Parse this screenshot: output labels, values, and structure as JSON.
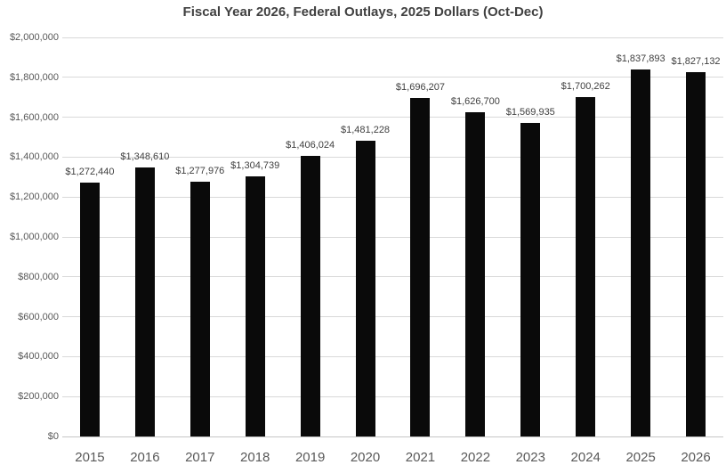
{
  "chart_data": {
    "type": "bar",
    "title": "Fiscal Year 2026, Federal Outlays, 2025 Dollars (Oct-Dec)",
    "categories": [
      "2015",
      "2016",
      "2017",
      "2018",
      "2019",
      "2020",
      "2021",
      "2022",
      "2023",
      "2024",
      "2025",
      "2026"
    ],
    "values": [
      1272440,
      1348610,
      1277976,
      1304739,
      1406024,
      1481228,
      1696207,
      1626700,
      1569935,
      1700262,
      1837893,
      1827132
    ],
    "bar_labels": [
      "$1,272,440",
      "$1,348,610",
      "$1,277,976",
      "$1,304,739",
      "$1,406,024",
      "$1,481,228",
      "$1,696,207",
      "$1,626,700",
      "$1,569,935",
      "$1,700,262",
      "$1,837,893",
      "$1,827,132"
    ],
    "y_tick_labels": [
      "$0",
      "$200,000",
      "$400,000",
      "$600,000",
      "$800,000",
      "$1,000,000",
      "$1,200,000",
      "$1,400,000",
      "$1,600,000",
      "$1,800,000",
      "$2,000,000"
    ],
    "ylim": [
      0,
      2000000
    ],
    "y_tick_step": 200000,
    "xlabel": "",
    "ylabel": "",
    "grid": true,
    "legend": false,
    "colors": {
      "bar": "#0a0a0a",
      "gridline": "#d9d9d9",
      "axis_line": "#c6c6c6",
      "title_text": "#404040",
      "tick_text": "#595959",
      "value_label_text": "#404040",
      "background": "#ffffff"
    }
  }
}
